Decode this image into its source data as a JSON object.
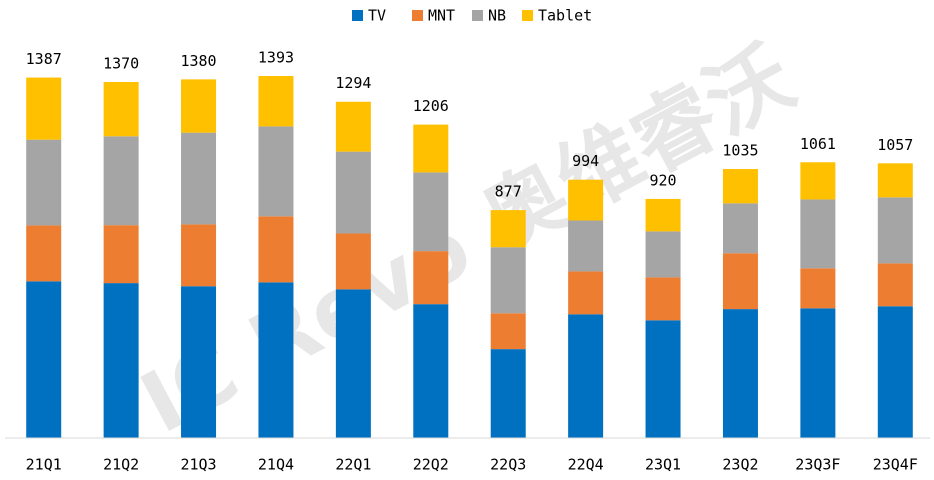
{
  "chart_data": {
    "type": "stacked_bar",
    "watermark": "IC Revo 奥维睿沃",
    "categories": [
      "21Q1",
      "21Q2",
      "21Q3",
      "21Q4",
      "22Q1",
      "22Q2",
      "22Q3",
      "22Q4",
      "23Q1",
      "23Q2",
      "23Q3F",
      "23Q4F"
    ],
    "series": [
      {
        "name": "TV",
        "color": "#0070c0",
        "values": [
          603,
          596,
          584,
          599,
          572,
          515,
          342,
          476,
          453,
          496,
          499,
          507
        ]
      },
      {
        "name": "MNT",
        "color": "#ed7d31",
        "values": [
          215,
          223,
          238,
          254,
          215,
          204,
          138,
          165,
          165,
          215,
          154,
          165
        ]
      },
      {
        "name": "NB",
        "color": "#a5a5a5",
        "values": [
          330,
          342,
          353,
          346,
          315,
          303,
          254,
          196,
          177,
          192,
          265,
          254
        ]
      },
      {
        "name": "Tablet",
        "color": "#ffc000",
        "values": [
          239,
          209,
          205,
          194,
          192,
          184,
          143,
          157,
          125,
          132,
          143,
          131
        ]
      }
    ],
    "totals": [
      1387,
      1370,
      1380,
      1393,
      1294,
      1206,
      877,
      994,
      920,
      1035,
      1061,
      1057
    ]
  }
}
